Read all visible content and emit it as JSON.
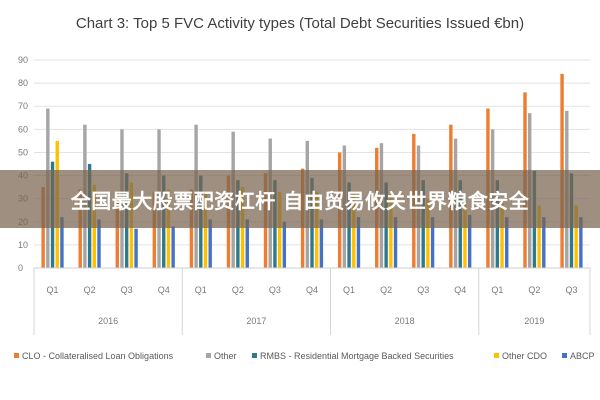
{
  "chart_data": {
    "type": "bar",
    "title": "Chart 3: Top 5 FVC Activity types (Total Debt Securities Issued €bn)",
    "xlabel": "",
    "ylabel": "",
    "ylim": [
      0,
      90
    ],
    "yticks": [
      0,
      10,
      20,
      30,
      40,
      50,
      60,
      70,
      80,
      90
    ],
    "grid": true,
    "legend_position": "bottom",
    "categories": [
      "Q1",
      "Q2",
      "Q3",
      "Q4",
      "Q1",
      "Q2",
      "Q3",
      "Q4",
      "Q1",
      "Q2",
      "Q3",
      "Q4",
      "Q1",
      "Q2",
      "Q3"
    ],
    "year_groups": [
      {
        "label": "2016",
        "count": 4
      },
      {
        "label": "2017",
        "count": 4
      },
      {
        "label": "2018",
        "count": 4
      },
      {
        "label": "2019",
        "count": 3
      }
    ],
    "series": [
      {
        "name": "CLO - Collateralised Loan Obligations",
        "color": "#ED7D31",
        "values": [
          35,
          34,
          33,
          33,
          34,
          40,
          41,
          43,
          50,
          52,
          58,
          62,
          69,
          76,
          84
        ]
      },
      {
        "name": "Other",
        "color": "#A5A5A5",
        "values": [
          69,
          62,
          60,
          60,
          62,
          59,
          56,
          55,
          53,
          54,
          53,
          56,
          60,
          67,
          68
        ]
      },
      {
        "name": "RMBS - Residential Mortgage Backed Securities",
        "color": "#2E7A8C",
        "values": [
          46,
          45,
          41,
          40,
          40,
          38,
          38,
          39,
          37,
          37,
          38,
          38,
          38,
          42,
          41
        ]
      },
      {
        "name": "Other CDO",
        "color": "#FFC000",
        "values": [
          55,
          36,
          37,
          34,
          33,
          35,
          33,
          33,
          32,
          32,
          30,
          28,
          28,
          27,
          27
        ]
      },
      {
        "name": "ABCP",
        "color": "#4472C4",
        "values": [
          22,
          21,
          17,
          18,
          21,
          21,
          20,
          21,
          22,
          22,
          22,
          23,
          22,
          22,
          22
        ]
      }
    ]
  },
  "banner": {
    "text": "全国最大股票配资杠杆 自由贸易攸关世界粮食安全"
  }
}
